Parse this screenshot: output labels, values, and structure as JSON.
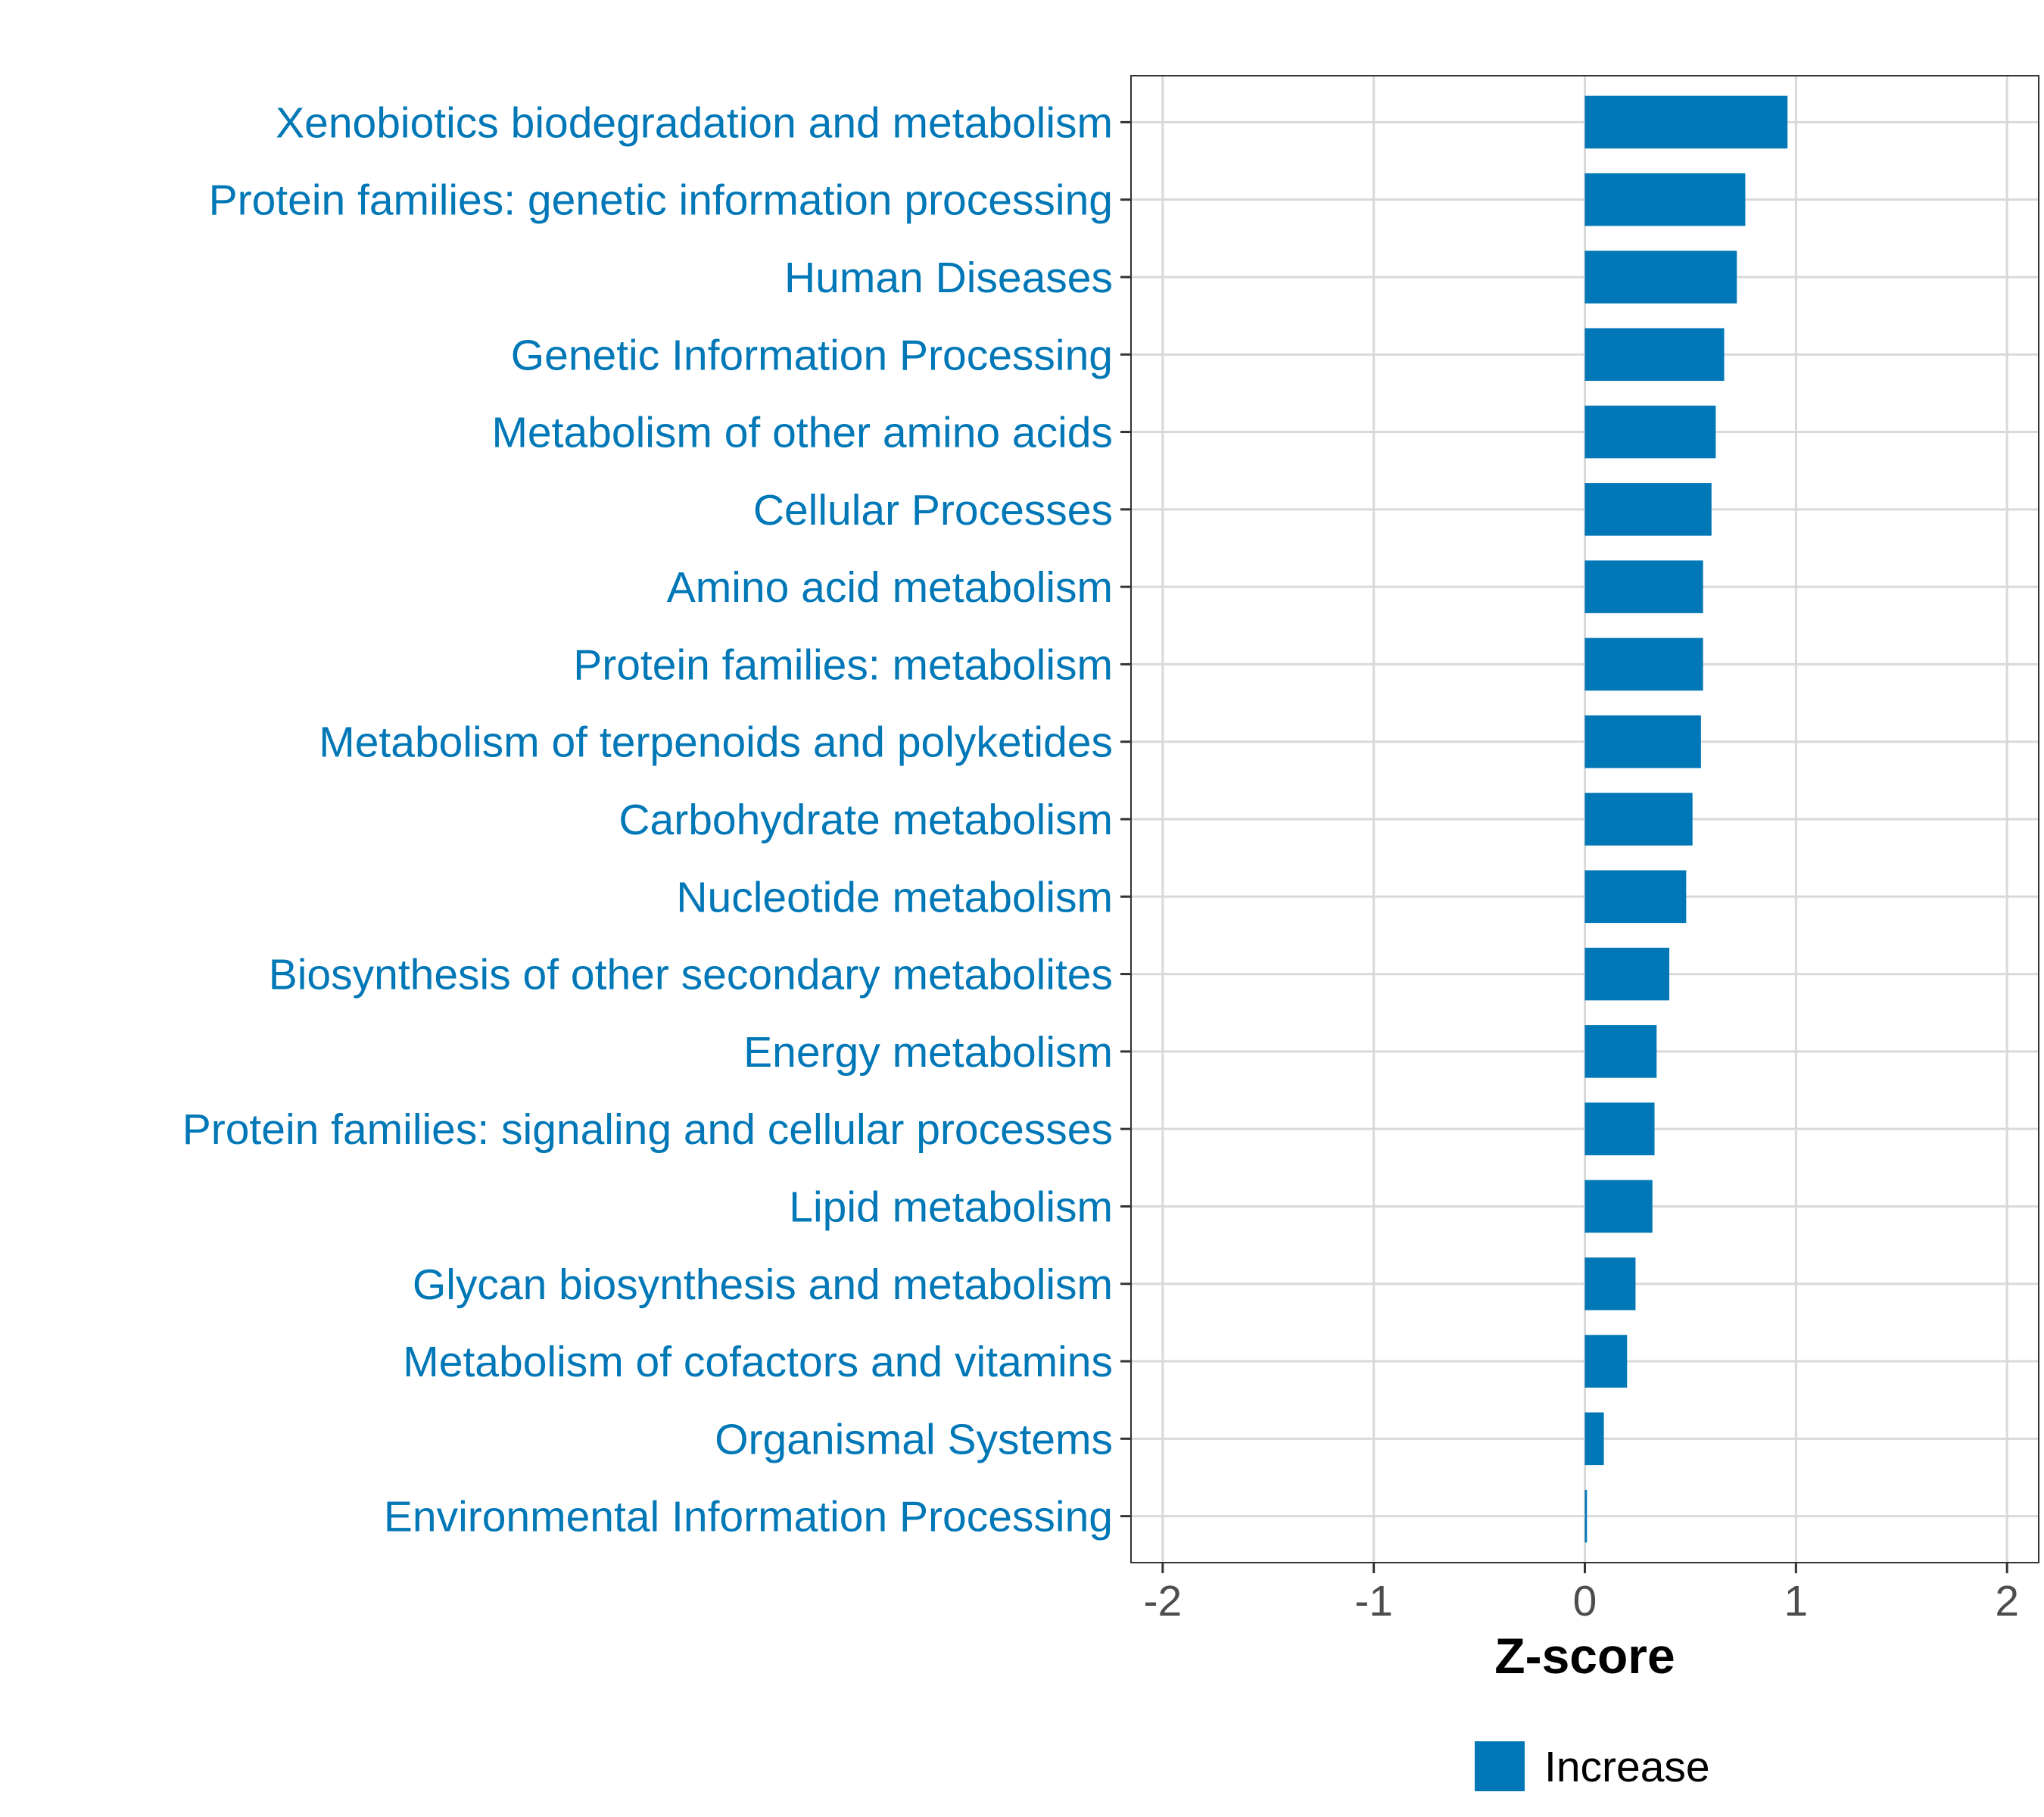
{
  "chart_data": {
    "type": "bar",
    "orientation": "horizontal",
    "categories": [
      "Xenobiotics biodegradation and metabolism",
      "Protein families: genetic information processing",
      "Human Diseases",
      "Genetic Information Processing",
      "Metabolism of other amino acids",
      "Cellular Processes",
      "Amino acid metabolism",
      "Protein families: metabolism",
      "Metabolism of terpenoids and polyketides",
      "Carbohydrate metabolism",
      "Nucleotide metabolism",
      "Biosynthesis of other secondary metabolites",
      "Energy metabolism",
      "Protein families: signaling and cellular processes",
      "Lipid metabolism",
      "Glycan biosynthesis and metabolism",
      "Metabolism of cofactors and vitamins",
      "Organismal Systems",
      "Environmental Information Processing"
    ],
    "values": [
      0.96,
      0.76,
      0.72,
      0.66,
      0.62,
      0.6,
      0.56,
      0.56,
      0.55,
      0.51,
      0.48,
      0.4,
      0.34,
      0.33,
      0.32,
      0.24,
      0.2,
      0.09,
      0.01
    ],
    "xlim": [
      -2.15,
      2.15
    ],
    "xticks": [
      -2,
      -1,
      0,
      1,
      2
    ],
    "xtick_labels": [
      "-2",
      "-1",
      "0",
      "1",
      "2"
    ],
    "xlabel": "Z-score",
    "ylabel": "",
    "grid": true,
    "legend": {
      "position": "bottom",
      "entries": [
        {
          "label": "Increase",
          "color": "#0077b6"
        }
      ]
    },
    "colors": {
      "bar": "#0077b6",
      "label": "#0077b6",
      "grid": "#d9d9d9",
      "tick_text": "#4d4d4d"
    }
  }
}
